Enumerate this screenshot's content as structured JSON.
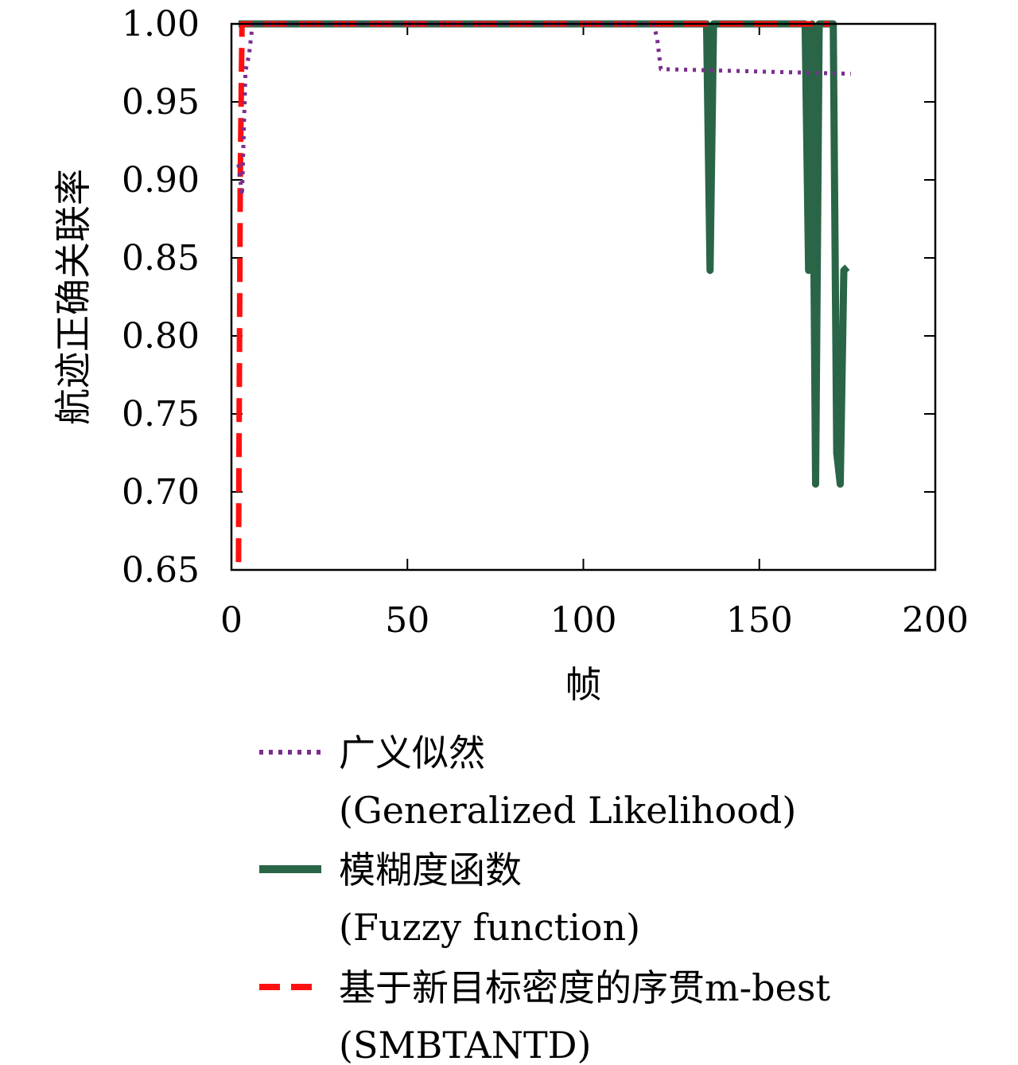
{
  "chart_data": {
    "type": "line",
    "title": "",
    "xlabel": "帧",
    "ylabel": "航迹正确关联率",
    "xlim": [
      0,
      200
    ],
    "ylim": [
      0.65,
      1.0
    ],
    "xticks": [
      0,
      50,
      100,
      150,
      200
    ],
    "yticks": [
      0.65,
      0.7,
      0.75,
      0.8,
      0.85,
      0.9,
      0.95,
      1.0
    ],
    "xtick_labels": [
      "0",
      "50",
      "100",
      "150",
      "200"
    ],
    "ytick_labels": [
      "0.65",
      "0.70",
      "0.75",
      "0.80",
      "0.85",
      "0.90",
      "0.95",
      "1.00"
    ],
    "grid": false,
    "legend_position": "below",
    "series": [
      {
        "name_lines": [
          "广义似然",
          "(Generalized Likelihood)"
        ],
        "color": "#7B2D8E",
        "style": "dotted",
        "x": [
          2,
          3,
          4,
          5,
          6,
          120,
          121,
          122,
          176
        ],
        "y": [
          0.91,
          0.89,
          0.97,
          0.98,
          1.0,
          1.0,
          0.99,
          0.971,
          0.968
        ]
      },
      {
        "name_lines": [
          "模糊度函数",
          "(Fuzzy function)"
        ],
        "color": "#2A6547",
        "style": "solid",
        "x": [
          2,
          135,
          136,
          137,
          163,
          164,
          165,
          166,
          167,
          168,
          171,
          172,
          173,
          174,
          175
        ],
        "y": [
          1.0,
          1.0,
          0.842,
          1.0,
          1.0,
          0.842,
          1.0,
          0.705,
          1.0,
          1.0,
          1.0,
          0.725,
          0.705,
          0.842,
          0.844
        ]
      },
      {
        "name_lines": [
          "基于新目标密度的序贯m-best",
          "(SMBTANTD)"
        ],
        "color": "#FF1010",
        "style": "dashed",
        "x": [
          2,
          2.5,
          3,
          170
        ],
        "y": [
          0.655,
          0.9,
          1.0,
          1.0
        ]
      }
    ]
  }
}
